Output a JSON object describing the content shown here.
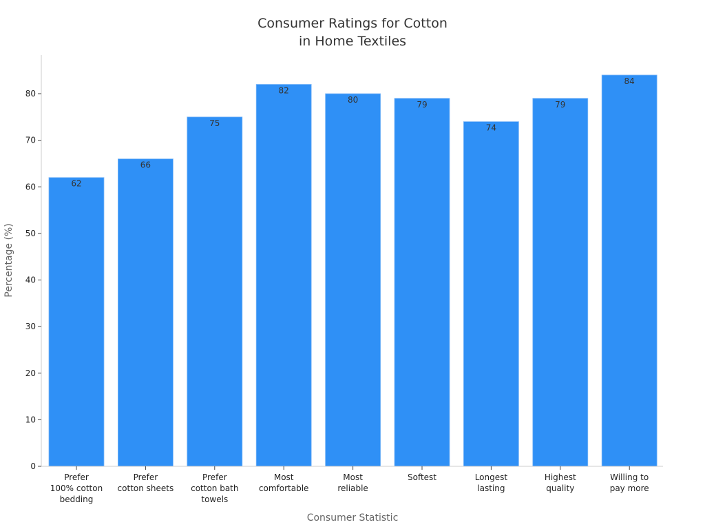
{
  "chart_data": {
    "type": "bar",
    "title": "Consumer Ratings for Cotton in Home Textiles",
    "title_lines": [
      "Consumer Ratings for Cotton",
      "in Home Textiles"
    ],
    "xlabel": "Consumer Statistic",
    "ylabel": "Percentage (%)",
    "categories": [
      "Prefer 100% cotton bedding",
      "Prefer cotton sheets",
      "Prefer cotton bath towels",
      "Most comfortable",
      "Most reliable",
      "Softest",
      "Longest lasting",
      "Highest quality",
      "Willing to pay more"
    ],
    "category_lines": [
      [
        "Prefer",
        "100% cotton",
        "bedding"
      ],
      [
        "Prefer",
        "cotton sheets"
      ],
      [
        "Prefer",
        "cotton bath",
        "towels"
      ],
      [
        "Most",
        "comfortable"
      ],
      [
        "Most",
        "reliable"
      ],
      [
        "Softest"
      ],
      [
        "Longest",
        "lasting"
      ],
      [
        "Highest",
        "quality"
      ],
      [
        "Willing to",
        "pay more"
      ]
    ],
    "values": [
      62,
      66,
      75,
      82,
      80,
      79,
      74,
      79,
      84
    ],
    "yticks": [
      0,
      10,
      20,
      30,
      40,
      50,
      60,
      70,
      80
    ],
    "ylim": [
      0,
      88
    ],
    "grid": false,
    "legend": null,
    "bar_color": "#2f90f6",
    "data_labels": true
  }
}
